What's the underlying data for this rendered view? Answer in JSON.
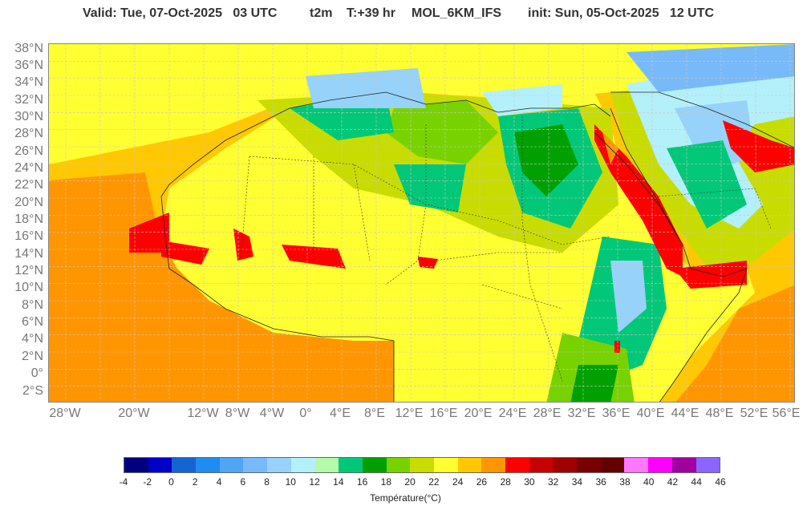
{
  "header": {
    "valid": "Valid: Tue, 07-Oct-2025   03 UTC",
    "param": "t2m",
    "step": "T:+39 hr",
    "model": "MOL_6KM_IFS",
    "init": "init: Sun, 05-Oct-2025   12 UTC"
  },
  "map": {
    "lat_labels": [
      "38°N",
      "36°N",
      "34°N",
      "32°N",
      "30°N",
      "28°N",
      "26°N",
      "24°N",
      "22°N",
      "20°N",
      "18°N",
      "16°N",
      "14°N",
      "12°N",
      "10°N",
      "8°N",
      "6°N",
      "4°N",
      "2°N",
      "0°",
      "2°S"
    ],
    "lon_labels": [
      "28°W",
      "20°W",
      "12°W",
      "8°W",
      "4°W",
      "0°",
      "4°E",
      "8°E",
      "12°E",
      "16°E",
      "20°E",
      "24°E",
      "28°E",
      "32°E",
      "36°E",
      "40°E",
      "44°E",
      "48°E",
      "52°E",
      "56°E"
    ]
  },
  "colorbar": {
    "title": "Température(°C)",
    "labels": [
      "-4",
      "-2",
      "0",
      "2",
      "4",
      "6",
      "8",
      "10",
      "12",
      "14",
      "16",
      "18",
      "20",
      "22",
      "24",
      "26",
      "28",
      "30",
      "32",
      "34",
      "36",
      "38",
      "40",
      "42",
      "44",
      "46"
    ],
    "colors": [
      "#000080",
      "#0000c8",
      "#1464d2",
      "#1e8cf0",
      "#50a5f5",
      "#78b9fa",
      "#96d2fa",
      "#b4f0fa",
      "#b4faaa",
      "#00c878",
      "#00a000",
      "#78d200",
      "#c8dc00",
      "#ffff32",
      "#ffc800",
      "#ff9600",
      "#ff0000",
      "#c80000",
      "#a00000",
      "#780000",
      "#640000",
      "#ff78ff",
      "#ff00ff",
      "#a000a0",
      "#8c64ff"
    ]
  }
}
